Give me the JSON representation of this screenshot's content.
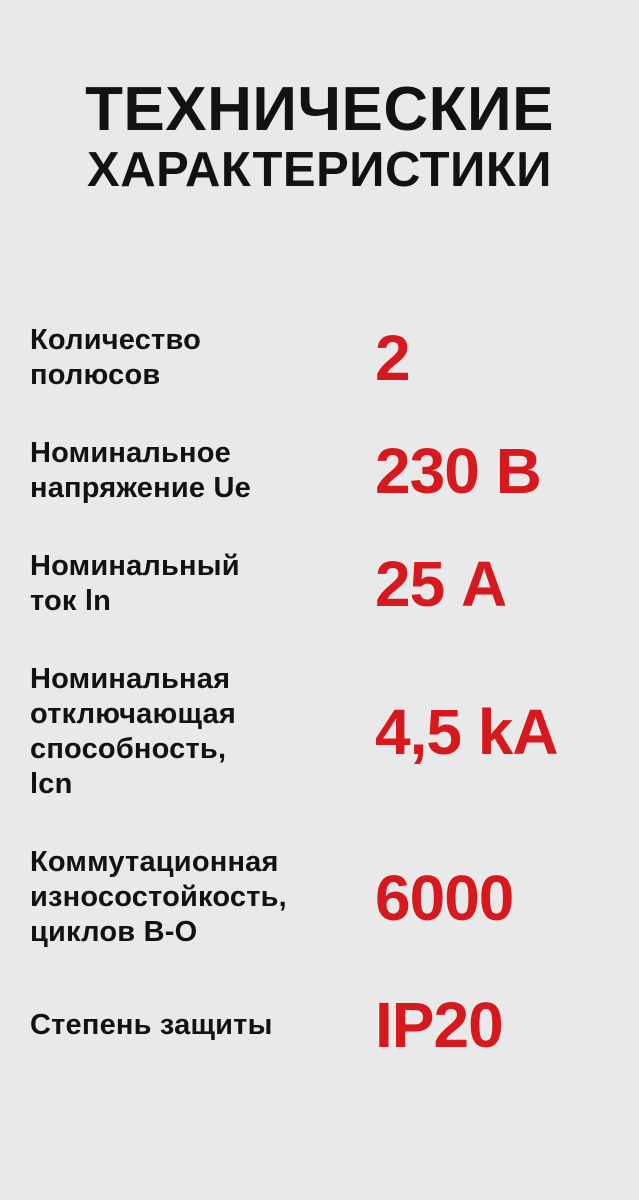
{
  "page": {
    "background": "#e9e9e9",
    "text_black": "#121212",
    "accent_red": "#d6191e"
  },
  "title": {
    "line1": "ТЕХНИЧЕСКИЕ",
    "line2": "ХАРАКТЕРИСТИКИ"
  },
  "specs": [
    {
      "label": "Количество\nполюсов",
      "value": "2"
    },
    {
      "label": "Номинальное\nнапряжение Ue",
      "value": "230 В"
    },
    {
      "label": "Номинальный\nток ln",
      "value": "25 А"
    },
    {
      "label": "Номинальная\nотключающая\nспособность,\nlcn",
      "value": "4,5 kA"
    },
    {
      "label": "Коммутационная\nизносостойкость,\nциклов В-О",
      "value": "6000"
    },
    {
      "label": "Степень защиты",
      "value": "IP20"
    }
  ]
}
